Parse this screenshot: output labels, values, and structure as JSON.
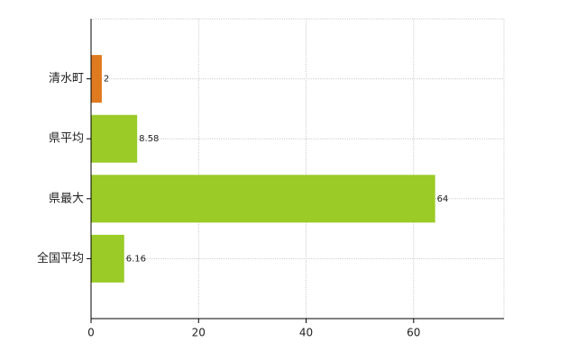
{
  "chart_data": {
    "type": "hbar",
    "categories": [
      "清水町",
      "県平均",
      "県最大",
      "全国平均"
    ],
    "values": [
      2,
      8.58,
      64,
      6.16
    ],
    "colors": [
      "#e07a1f",
      "#9acb26",
      "#9acb26",
      "#9acb26"
    ],
    "xlim": [
      0,
      76.8
    ],
    "xticks": [
      0,
      20,
      40,
      60
    ],
    "grid": true
  }
}
